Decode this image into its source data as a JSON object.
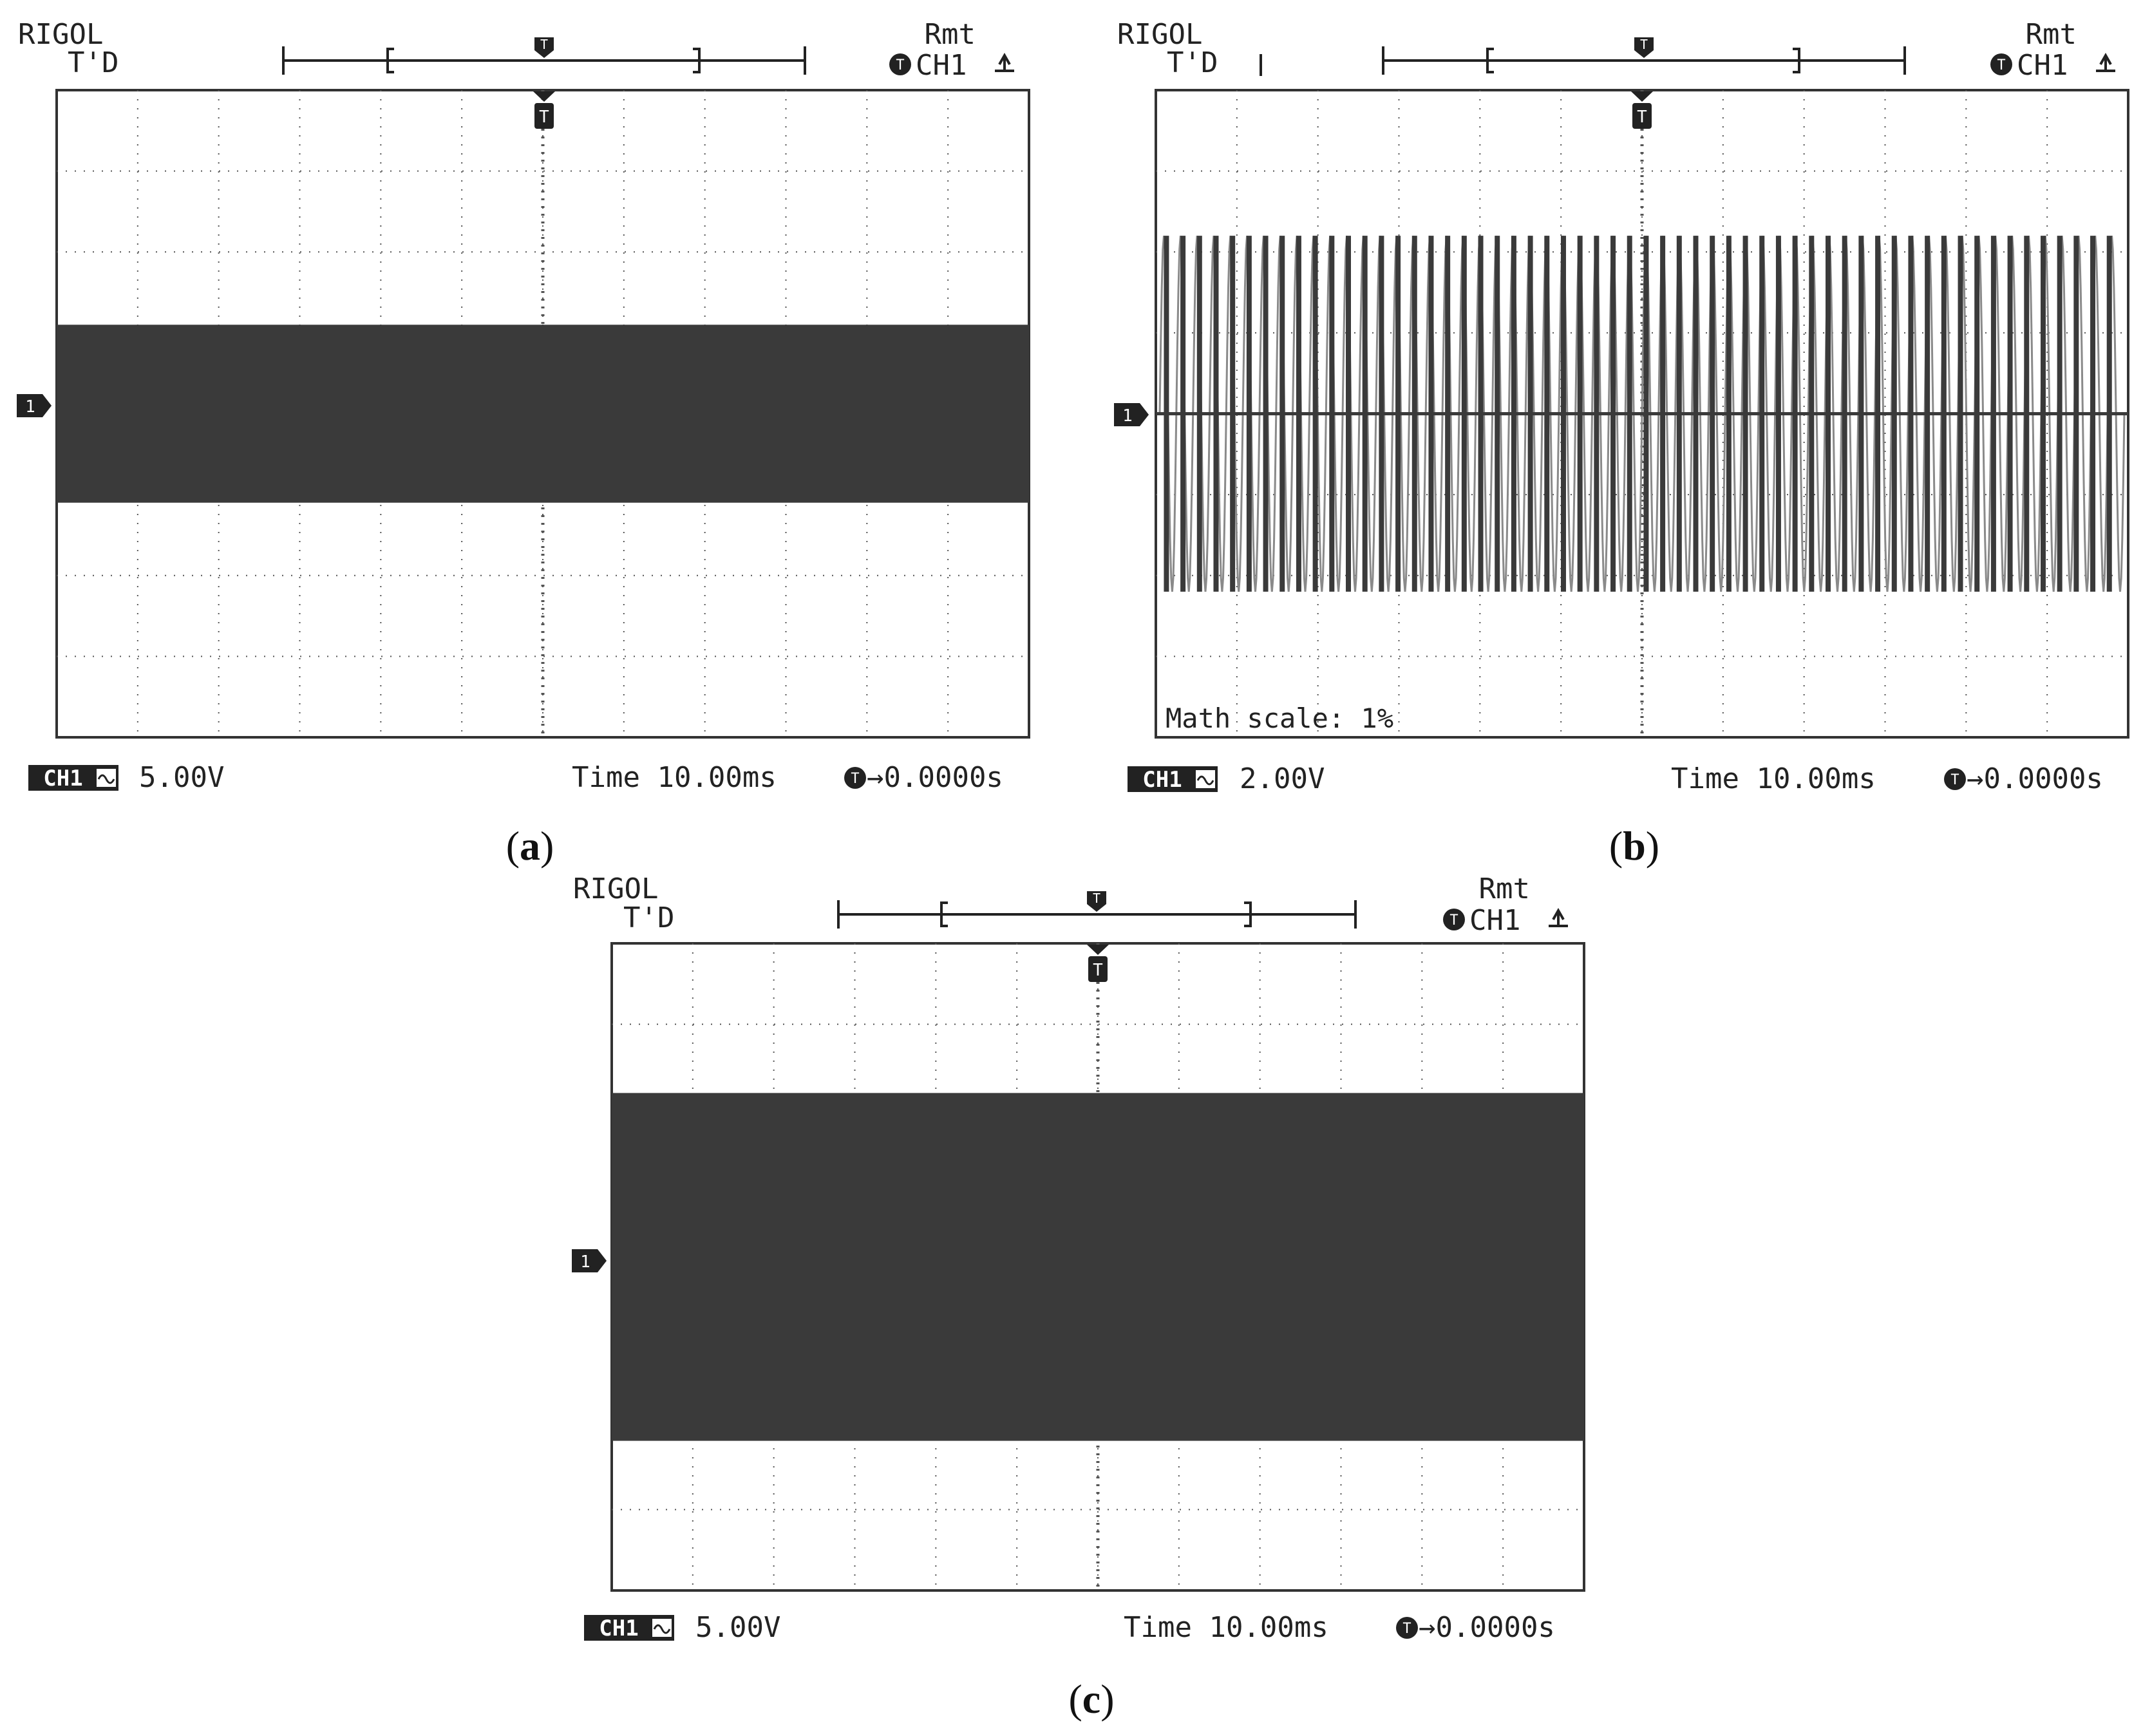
{
  "colors": {
    "background": "#ffffff",
    "ink": "#222222",
    "trace": "#3a3a3a",
    "trace_light": "#8a8a8a",
    "grid": "#555555"
  },
  "panels": [
    {
      "caption_letter": "a",
      "header": {
        "brand": "RIGOL",
        "mode": "T'D",
        "remote": "Rmt",
        "trigger_source": "CH1",
        "trigger_marker": "T",
        "trigger_edge": "rising-edge-icon"
      },
      "footer": {
        "channel_badge": "CH1",
        "volts_per_div": "5.00V",
        "timebase": "Time 10.00ms",
        "trigger_offset": "→0.0000s"
      },
      "channel_marker": "1",
      "overlay_text": ""
    },
    {
      "caption_letter": "b",
      "header": {
        "brand": "RIGOL",
        "mode": "T'D",
        "remote": "Rmt",
        "trigger_source": "CH1",
        "trigger_marker": "T",
        "trigger_edge": "rising-edge-icon"
      },
      "footer": {
        "channel_badge": "CH1",
        "volts_per_div": "2.00V",
        "timebase": "Time 10.00ms",
        "trigger_offset": "→0.0000s"
      },
      "channel_marker": "1",
      "overlay_text": "Math scale: 1%"
    },
    {
      "caption_letter": "c",
      "header": {
        "brand": "RIGOL",
        "mode": "T'D",
        "remote": "Rmt",
        "trigger_source": "CH1",
        "trigger_marker": "T",
        "trigger_edge": "rising-edge-icon"
      },
      "footer": {
        "channel_badge": "CH1",
        "volts_per_div": "5.00V",
        "timebase": "Time 10.00ms",
        "trigger_offset": "→0.0000s"
      },
      "channel_marker": "1",
      "overlay_text": ""
    }
  ],
  "chart_data": [
    {
      "type": "area",
      "grid": true,
      "x_divisions": 12,
      "y_divisions": 8,
      "xlim": [
        -60,
        60
      ],
      "ylim": [
        -4,
        4
      ],
      "series": [
        {
          "envelope_top_div": 1.1,
          "envelope_bottom_div": -1.1
        }
      ]
    },
    {
      "type": "line",
      "grid": true,
      "x_divisions": 12,
      "y_divisions": 8,
      "xlim": [
        -60,
        60
      ],
      "ylim": [
        -4,
        4
      ],
      "series": [
        {
          "amplitude_div": 2.2,
          "cycles": 58,
          "beat_cycles": 4,
          "baseline_div": 0
        }
      ]
    },
    {
      "type": "area",
      "grid": true,
      "x_divisions": 12,
      "y_divisions": 8,
      "xlim": [
        -60,
        60
      ],
      "ylim": [
        -4,
        4
      ],
      "series": [
        {
          "envelope_top_div": 2.15,
          "envelope_bottom_div": -2.15
        }
      ]
    }
  ]
}
